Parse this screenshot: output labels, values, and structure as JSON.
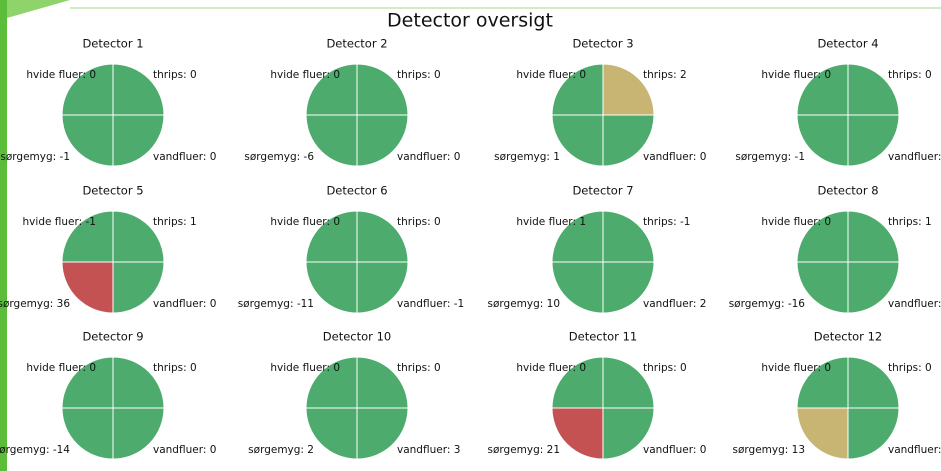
{
  "title": "Detector oversigt",
  "detectors": [
    {
      "title": "Detector 1",
      "quadrants": [
        {
          "label": "hvide fluer: 0",
          "color": "#4dab6d"
        },
        {
          "label": "thrips: 0",
          "color": "#4dab6d"
        },
        {
          "label": "vandfluer: 0",
          "color": "#4dab6d"
        },
        {
          "label": "sørgemyg: -1",
          "color": "#4dab6d"
        }
      ]
    },
    {
      "title": "Detector 2",
      "quadrants": [
        {
          "label": "hvide fluer: 0",
          "color": "#4dab6d"
        },
        {
          "label": "thrips: 0",
          "color": "#4dab6d"
        },
        {
          "label": "vandfluer: 0",
          "color": "#4dab6d"
        },
        {
          "label": "sørgemyg: -6",
          "color": "#4dab6d"
        }
      ]
    },
    {
      "title": "Detector 3",
      "quadrants": [
        {
          "label": "hvide fluer: 0",
          "color": "#4dab6d"
        },
        {
          "label": "thrips: 2",
          "color": "#c8b473"
        },
        {
          "label": "vandfluer: 0",
          "color": "#4dab6d"
        },
        {
          "label": "sørgemyg: 1",
          "color": "#4dab6d"
        }
      ]
    },
    {
      "title": "Detector 4",
      "quadrants": [
        {
          "label": "hvide fluer: 0",
          "color": "#4dab6d"
        },
        {
          "label": "thrips: 0",
          "color": "#4dab6d"
        },
        {
          "label": "vandfluer: -",
          "color": "#4dab6d"
        },
        {
          "label": "sørgemyg: -1",
          "color": "#4dab6d"
        }
      ]
    },
    {
      "title": "Detector 5",
      "quadrants": [
        {
          "label": "hvide fluer: -1",
          "color": "#4dab6d"
        },
        {
          "label": "thrips: 1",
          "color": "#4dab6d"
        },
        {
          "label": "vandfluer: 0",
          "color": "#4dab6d"
        },
        {
          "label": "sørgemyg: 36",
          "color": "#c45252"
        }
      ]
    },
    {
      "title": "Detector 6",
      "quadrants": [
        {
          "label": "hvide fluer: 0",
          "color": "#4dab6d"
        },
        {
          "label": "thrips: 0",
          "color": "#4dab6d"
        },
        {
          "label": "vandfluer: -1",
          "color": "#4dab6d"
        },
        {
          "label": "sørgemyg: -11",
          "color": "#4dab6d"
        }
      ]
    },
    {
      "title": "Detector 7",
      "quadrants": [
        {
          "label": "hvide fluer: 1",
          "color": "#4dab6d"
        },
        {
          "label": "thrips: -1",
          "color": "#4dab6d"
        },
        {
          "label": "vandfluer: 2",
          "color": "#4dab6d"
        },
        {
          "label": "sørgemyg: 10",
          "color": "#4dab6d"
        }
      ]
    },
    {
      "title": "Detector 8",
      "quadrants": [
        {
          "label": "hvide fluer: 0",
          "color": "#4dab6d"
        },
        {
          "label": "thrips: 1",
          "color": "#4dab6d"
        },
        {
          "label": "vandfluer: 1",
          "color": "#4dab6d"
        },
        {
          "label": "sørgemyg: -16",
          "color": "#4dab6d"
        }
      ]
    },
    {
      "title": "Detector 9",
      "quadrants": [
        {
          "label": "hvide fluer: 0",
          "color": "#4dab6d"
        },
        {
          "label": "thrips: 0",
          "color": "#4dab6d"
        },
        {
          "label": "vandfluer: 0",
          "color": "#4dab6d"
        },
        {
          "label": "sørgemyg: -14",
          "color": "#4dab6d"
        }
      ]
    },
    {
      "title": "Detector 10",
      "quadrants": [
        {
          "label": "hvide fluer: 0",
          "color": "#4dab6d"
        },
        {
          "label": "thrips: 0",
          "color": "#4dab6d"
        },
        {
          "label": "vandfluer: 3",
          "color": "#4dab6d"
        },
        {
          "label": "sørgemyg: 2",
          "color": "#4dab6d"
        }
      ]
    },
    {
      "title": "Detector 11",
      "quadrants": [
        {
          "label": "hvide fluer: 0",
          "color": "#4dab6d"
        },
        {
          "label": "thrips: 0",
          "color": "#4dab6d"
        },
        {
          "label": "vandfluer: 0",
          "color": "#4dab6d"
        },
        {
          "label": "sørgemyg: 21",
          "color": "#c45252"
        }
      ]
    },
    {
      "title": "Detector 12",
      "quadrants": [
        {
          "label": "hvide fluer: 0",
          "color": "#4dab6d"
        },
        {
          "label": "thrips: 0",
          "color": "#4dab6d"
        },
        {
          "label": "vandfluer: 0",
          "color": "#4dab6d"
        },
        {
          "label": "sørgemyg: 13",
          "color": "#c8b473"
        }
      ]
    }
  ]
}
